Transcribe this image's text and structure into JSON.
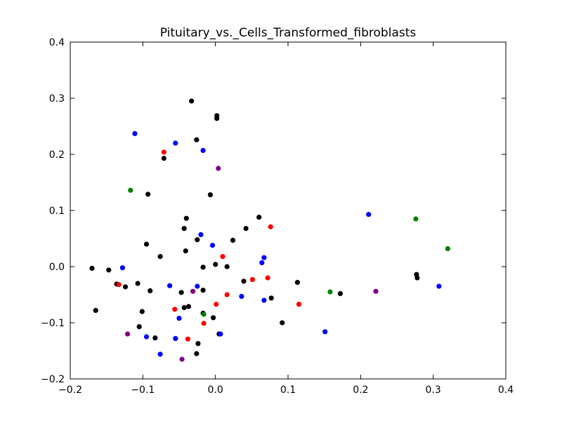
{
  "chart_data": {
    "type": "scatter",
    "title": "Pituitary_vs._Cells_Transformed_fibroblasts",
    "xlabel": "",
    "ylabel": "",
    "xlim": [
      -0.2,
      0.4
    ],
    "ylim": [
      -0.2,
      0.4
    ],
    "xticks": [
      -0.2,
      -0.1,
      0.0,
      0.1,
      0.2,
      0.3,
      0.4
    ],
    "yticks": [
      -0.2,
      -0.1,
      0.0,
      0.1,
      0.2,
      0.3,
      0.4
    ],
    "xtick_labels": [
      "−0.2",
      "−0.1",
      "0.0",
      "0.1",
      "0.2",
      "0.3",
      "0.4"
    ],
    "ytick_labels": [
      "−0.2",
      "−0.1",
      "0.0",
      "0.1",
      "0.2",
      "0.3",
      "0.4"
    ],
    "grid": false,
    "series": [
      {
        "color": "#000000",
        "points": [
          [
            -0.033,
            0.295
          ],
          [
            0.002,
            0.269
          ],
          [
            0.002,
            0.264
          ],
          [
            -0.026,
            0.226
          ],
          [
            -0.071,
            0.193
          ],
          [
            -0.093,
            0.129
          ],
          [
            -0.007,
            0.128
          ],
          [
            0.06,
            0.088
          ],
          [
            -0.04,
            0.086
          ],
          [
            -0.043,
            0.068
          ],
          [
            0.042,
            0.068
          ],
          [
            0.024,
            0.047
          ],
          [
            -0.025,
            0.048
          ],
          [
            -0.095,
            0.04
          ],
          [
            -0.041,
            0.028
          ],
          [
            -0.076,
            0.018
          ],
          [
            0.0,
            0.004
          ],
          [
            0.016,
            0.0
          ],
          [
            -0.017,
            -0.001
          ],
          [
            -0.17,
            -0.003
          ],
          [
            -0.147,
            -0.006
          ],
          [
            -0.136,
            -0.031
          ],
          [
            -0.107,
            -0.03
          ],
          [
            -0.124,
            -0.036
          ],
          [
            -0.09,
            -0.043
          ],
          [
            0.039,
            -0.026
          ],
          [
            0.113,
            -0.028
          ],
          [
            -0.047,
            -0.046
          ],
          [
            -0.017,
            -0.042
          ],
          [
            0.277,
            -0.014
          ],
          [
            0.278,
            -0.02
          ],
          [
            0.172,
            -0.048
          ],
          [
            0.077,
            -0.056
          ],
          [
            -0.037,
            -0.071
          ],
          [
            -0.043,
            -0.073
          ],
          [
            -0.101,
            -0.08
          ],
          [
            -0.165,
            -0.078
          ],
          [
            -0.017,
            -0.083
          ],
          [
            -0.003,
            -0.091
          ],
          [
            0.092,
            -0.1
          ],
          [
            -0.105,
            -0.107
          ],
          [
            0.005,
            -0.12
          ],
          [
            -0.083,
            -0.127
          ],
          [
            -0.024,
            -0.137
          ],
          [
            -0.026,
            -0.155
          ]
        ]
      },
      {
        "color": "#0000ff",
        "points": [
          [
            -0.111,
            0.237
          ],
          [
            -0.055,
            0.22
          ],
          [
            -0.017,
            0.207
          ],
          [
            0.211,
            0.093
          ],
          [
            -0.02,
            0.057
          ],
          [
            -0.004,
            0.038
          ],
          [
            0.067,
            0.016
          ],
          [
            0.064,
            0.007
          ],
          [
            -0.128,
            -0.002
          ],
          [
            -0.063,
            -0.034
          ],
          [
            -0.025,
            -0.035
          ],
          [
            0.036,
            -0.053
          ],
          [
            0.067,
            -0.06
          ],
          [
            0.308,
            -0.035
          ],
          [
            -0.05,
            -0.092
          ],
          [
            0.151,
            -0.116
          ],
          [
            0.007,
            -0.12
          ],
          [
            -0.095,
            -0.125
          ],
          [
            -0.055,
            -0.128
          ],
          [
            -0.076,
            -0.156
          ]
        ]
      },
      {
        "color": "#ff0000",
        "points": [
          [
            -0.071,
            0.204
          ],
          [
            0.076,
            0.071
          ],
          [
            0.01,
            0.018
          ],
          [
            -0.133,
            -0.032
          ],
          [
            0.051,
            -0.023
          ],
          [
            0.072,
            -0.02
          ],
          [
            0.016,
            -0.05
          ],
          [
            0.001,
            -0.067
          ],
          [
            0.115,
            -0.067
          ],
          [
            -0.056,
            -0.076
          ],
          [
            -0.016,
            -0.101
          ],
          [
            -0.038,
            -0.129
          ]
        ]
      },
      {
        "color": "#008000",
        "points": [
          [
            -0.117,
            0.136
          ],
          [
            0.276,
            0.085
          ],
          [
            0.32,
            0.032
          ],
          [
            0.158,
            -0.045
          ],
          [
            -0.016,
            -0.085
          ]
        ]
      },
      {
        "color": "#800080",
        "points": [
          [
            0.004,
            0.175
          ],
          [
            -0.031,
            -0.044
          ],
          [
            0.221,
            -0.044
          ],
          [
            -0.121,
            -0.12
          ],
          [
            -0.046,
            -0.165
          ]
        ]
      }
    ]
  }
}
